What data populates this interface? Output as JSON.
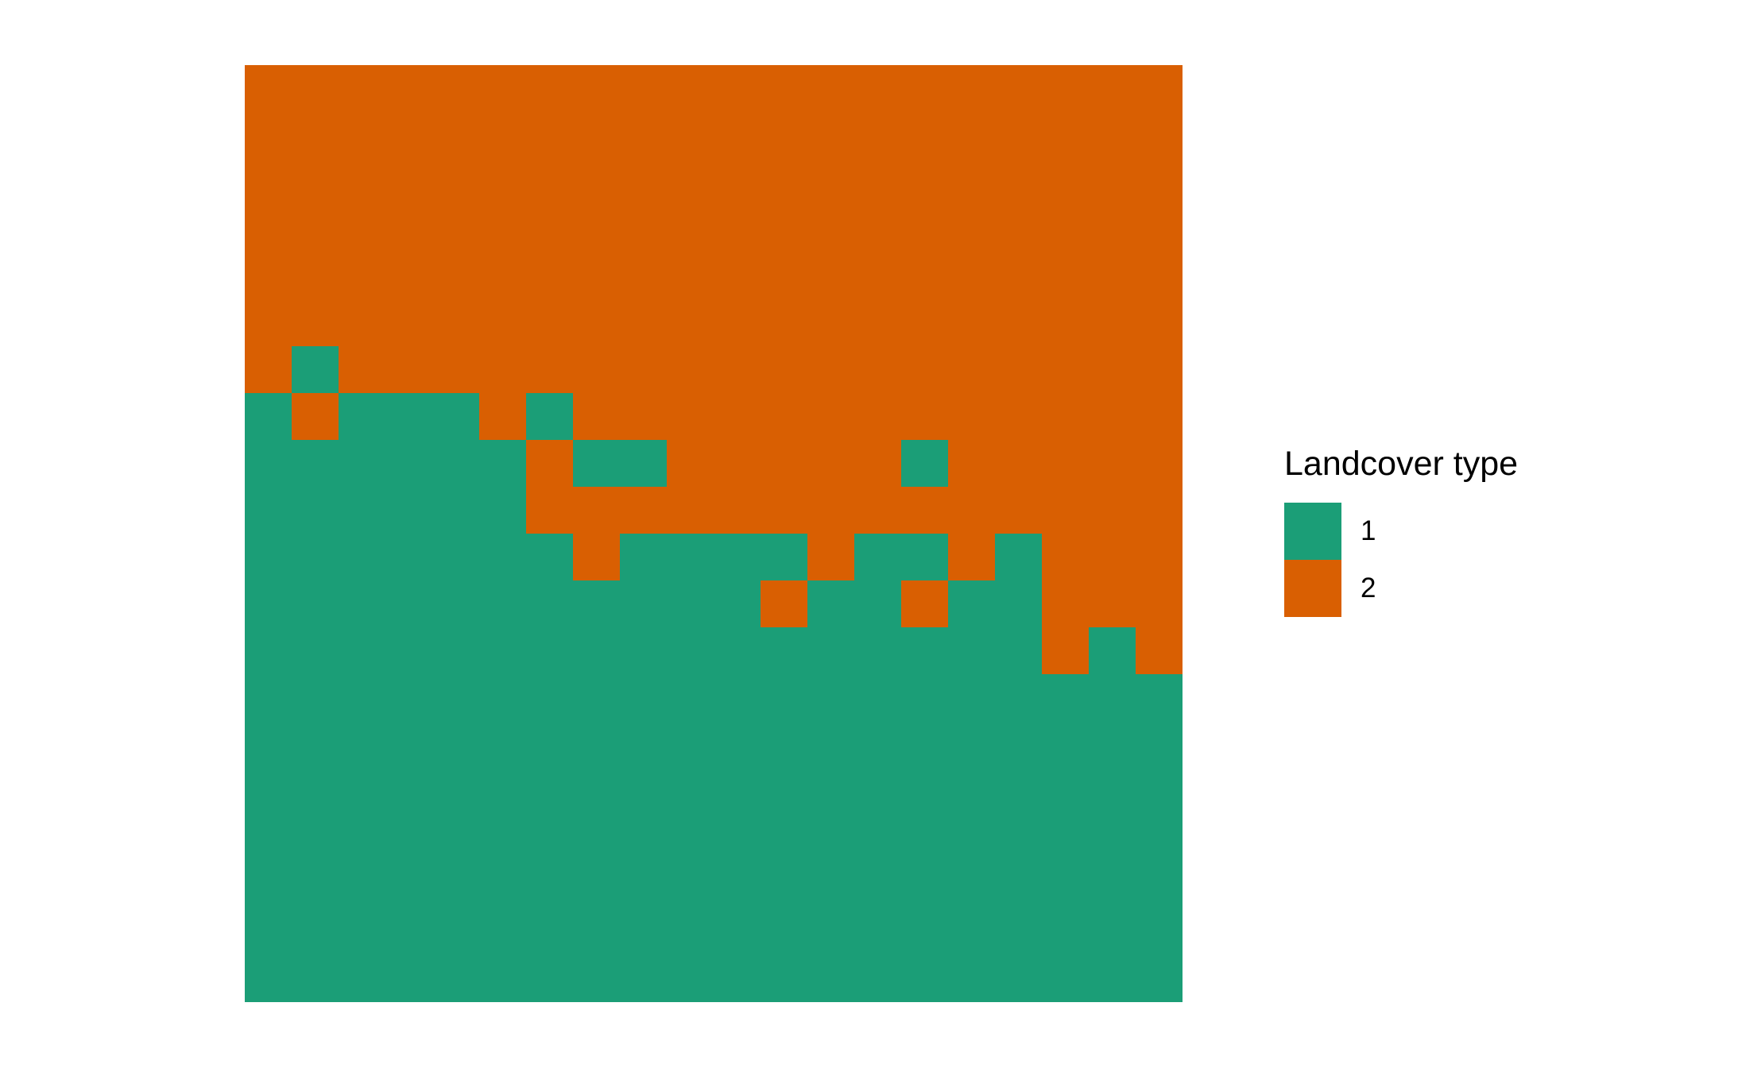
{
  "chart_data": {
    "type": "heatmap",
    "title": "",
    "xlabel": "",
    "ylabel": "",
    "grid_size": [
      20,
      20
    ],
    "rows_top_to_bottom": [
      "22222222222222222222",
      "22222222222222222222",
      "22222222222222222222",
      "22222222222222222222",
      "22222222222222222222",
      "22222222222222222222",
      "21222222222222222222",
      "12111212222222222222",
      "11111121122222122222",
      "11111122222222222222",
      "11111112111121121222",
      "11111111111211211222",
      "11111111111111111212",
      "11111111111111111111",
      "11111111111111111111",
      "11111111111111111111",
      "11111111111111111111",
      "11111111111111111111",
      "11111111111111111111",
      "11111111111111111111"
    ],
    "colors": {
      "1": "#1b9e77",
      "2": "#d95f02"
    },
    "legend": {
      "title": "Landcover type",
      "position": "right",
      "items": [
        {
          "label": "1",
          "color": "#1b9e77"
        },
        {
          "label": "2",
          "color": "#d95f02"
        }
      ]
    }
  }
}
